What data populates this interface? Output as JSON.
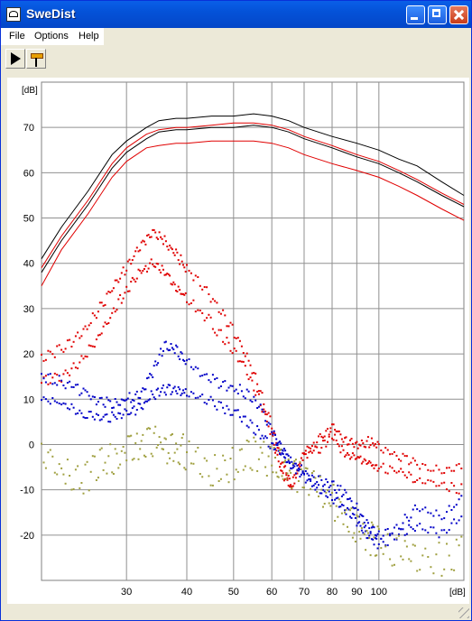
{
  "window": {
    "title": "SweDist"
  },
  "menu": {
    "file": "File",
    "options": "Options",
    "help": "Help"
  },
  "toolbar": {
    "play_icon": "play-icon",
    "probe_icon": "probe-icon"
  },
  "chart_data": {
    "type": "line",
    "y_unit_label": "[dB]",
    "x_unit_label": "[dB]",
    "xscale": "log",
    "xlim": [
      20,
      150
    ],
    "ylim": [
      -30,
      80
    ],
    "x_ticks": [
      30,
      40,
      50,
      60,
      70,
      80,
      90,
      100
    ],
    "x_gridlines": [
      30,
      40,
      50,
      60,
      70,
      80,
      90,
      100
    ],
    "y_ticks": [
      -20,
      -10,
      0,
      10,
      20,
      30,
      40,
      50,
      60,
      70
    ],
    "grid": true,
    "colors": {
      "black": "#000000",
      "red": "#e00000",
      "blue": "#0000c8",
      "olive": "#a0a040"
    },
    "series": [
      {
        "color": "black",
        "style": "line",
        "x": [
          20,
          22,
          25,
          28,
          30,
          33,
          35,
          38,
          40,
          45,
          50,
          55,
          60,
          65,
          70,
          80,
          90,
          100,
          110,
          120,
          135,
          150
        ],
        "y": [
          41,
          48,
          56,
          64,
          67,
          70,
          71.5,
          72,
          72,
          72.5,
          72.5,
          73,
          72.5,
          71.5,
          70,
          68,
          66.5,
          65,
          63,
          61.5,
          58,
          55
        ]
      },
      {
        "color": "black",
        "style": "line",
        "x": [
          20,
          22,
          25,
          28,
          30,
          33,
          35,
          38,
          40,
          45,
          50,
          55,
          60,
          65,
          70,
          80,
          90,
          100,
          110,
          120,
          135,
          150
        ],
        "y": [
          38,
          45,
          53,
          61,
          64.5,
          67.5,
          69,
          69.5,
          69.5,
          70,
          70,
          70.5,
          70,
          69,
          67.5,
          65.5,
          63.5,
          62,
          60,
          58,
          55,
          52.5
        ]
      },
      {
        "color": "red",
        "style": "line",
        "x": [
          20,
          22,
          25,
          28,
          30,
          33,
          35,
          38,
          40,
          45,
          50,
          55,
          60,
          65,
          70,
          80,
          90,
          100,
          110,
          120,
          135,
          150
        ],
        "y": [
          39,
          46,
          54,
          62,
          65.5,
          68.5,
          69.5,
          70,
          70,
          70.5,
          71,
          71,
          70.5,
          69.5,
          68,
          66,
          64,
          62.5,
          60.5,
          58.5,
          55.5,
          53
        ]
      },
      {
        "color": "red",
        "style": "line",
        "x": [
          20,
          22,
          25,
          28,
          30,
          33,
          35,
          38,
          40,
          45,
          50,
          55,
          60,
          65,
          70,
          80,
          90,
          100,
          110,
          120,
          135,
          150
        ],
        "y": [
          35,
          43,
          51,
          59,
          62.5,
          65.5,
          66,
          66.5,
          66.5,
          67,
          67,
          67,
          66.5,
          65.5,
          64,
          62,
          60.5,
          59,
          57,
          55,
          52,
          49.5
        ]
      },
      {
        "color": "red",
        "style": "dots",
        "x": [
          20,
          22,
          24,
          26,
          28,
          30,
          32,
          34,
          36,
          38,
          40,
          44,
          48,
          52,
          56,
          60,
          63,
          66,
          70,
          75,
          80,
          85,
          90,
          95,
          100,
          110,
          120,
          135,
          150
        ],
        "y": [
          19,
          21,
          24,
          29,
          34,
          39,
          44,
          47,
          45,
          42,
          39,
          34,
          28,
          22,
          14,
          4,
          -4,
          -9,
          -2,
          1,
          4,
          1,
          0,
          0.5,
          0,
          -3,
          -4,
          -6,
          -5
        ]
      },
      {
        "color": "red",
        "style": "dots",
        "x": [
          20,
          22,
          24,
          26,
          28,
          30,
          32,
          34,
          36,
          38,
          40,
          44,
          48,
          52,
          56,
          60,
          63,
          66,
          70,
          75,
          80,
          85,
          90,
          95,
          100,
          110,
          120,
          135,
          150
        ],
        "y": [
          14,
          15,
          18,
          23,
          29,
          34,
          38,
          40,
          38,
          35,
          32,
          28,
          23,
          18,
          11,
          2,
          -6,
          -10,
          -2,
          -1,
          2,
          -2,
          -3,
          -4,
          -5,
          -6,
          -8,
          -9,
          -10
        ]
      },
      {
        "color": "blue",
        "style": "dots",
        "x": [
          20,
          22,
          24,
          26,
          28,
          30,
          32,
          34,
          36,
          38,
          40,
          44,
          48,
          52,
          56,
          60,
          63,
          66,
          70,
          75,
          80,
          85,
          90,
          95,
          100,
          110,
          120,
          135,
          150
        ],
        "y": [
          15,
          14,
          12,
          10,
          9,
          10,
          11,
          16,
          22,
          21,
          18,
          15,
          13,
          12,
          9,
          3,
          -1,
          -5,
          -6,
          -8,
          -9,
          -11,
          -14,
          -18,
          -20,
          -18,
          -14,
          -16,
          -12
        ]
      },
      {
        "color": "blue",
        "style": "dots",
        "x": [
          20,
          22,
          24,
          26,
          28,
          30,
          32,
          34,
          36,
          38,
          40,
          44,
          48,
          52,
          56,
          60,
          63,
          66,
          70,
          75,
          80,
          85,
          90,
          95,
          100,
          110,
          120,
          135,
          150
        ],
        "y": [
          10,
          9,
          7,
          6,
          6,
          7,
          8,
          11,
          12,
          12,
          11,
          10,
          8,
          6,
          3,
          0,
          -2,
          -4,
          -7,
          -10,
          -12,
          -14,
          -17,
          -20,
          -22,
          -20,
          -18,
          -20,
          -15
        ]
      },
      {
        "color": "olive",
        "style": "dots",
        "x": [
          20,
          22,
          24,
          26,
          28,
          30,
          32,
          34,
          36,
          38,
          40,
          44,
          48,
          52,
          56,
          60,
          63,
          66,
          70,
          75,
          80,
          85,
          90,
          95,
          100,
          110,
          120,
          135,
          150
        ],
        "y": [
          -3,
          -6,
          -8,
          -5,
          -3,
          -1,
          0,
          1,
          0,
          -1,
          -2,
          -6,
          -5,
          -3,
          -2,
          -4,
          -5,
          -6,
          -8,
          -10,
          -12,
          -16,
          -18,
          -20,
          -22,
          -24,
          -25,
          -25,
          -24
        ]
      }
    ]
  }
}
